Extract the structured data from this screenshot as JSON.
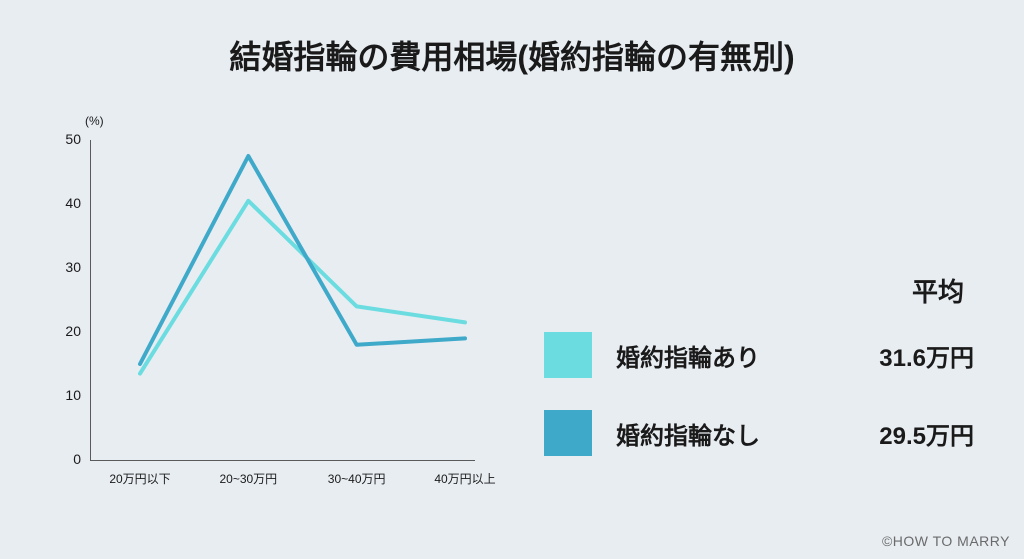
{
  "title": "結婚指輪の費用相場(婚約指輪の有無別)",
  "background_color": "#e8edf2",
  "chart": {
    "type": "line",
    "y_axis": {
      "unit_label": "(%)",
      "ticks": [
        0,
        10,
        20,
        30,
        40,
        50
      ],
      "ylim": [
        0,
        50
      ]
    },
    "x_axis": {
      "labels": [
        "20万円以下",
        "20~30万円",
        "30~40万円",
        "40万円以上"
      ]
    },
    "series": [
      {
        "name": "婚約指輪あり",
        "color": "#6bdce0",
        "line_width": 4,
        "values": [
          13.5,
          40.5,
          24,
          21.5
        ]
      },
      {
        "name": "婚約指輪なし",
        "color": "#3fa9c9",
        "line_width": 4,
        "values": [
          15,
          47.5,
          18,
          19
        ]
      }
    ],
    "axis_color": "#5a5a5a"
  },
  "legend": {
    "header": "平均",
    "rows": [
      {
        "swatch_color": "#6bdce0",
        "label": "婚約指輪あり",
        "value": "31.6万円"
      },
      {
        "swatch_color": "#3fa9c9",
        "label": "婚約指輪なし",
        "value": "29.5万円"
      }
    ]
  },
  "copyright": "©HOW TO MARRY"
}
